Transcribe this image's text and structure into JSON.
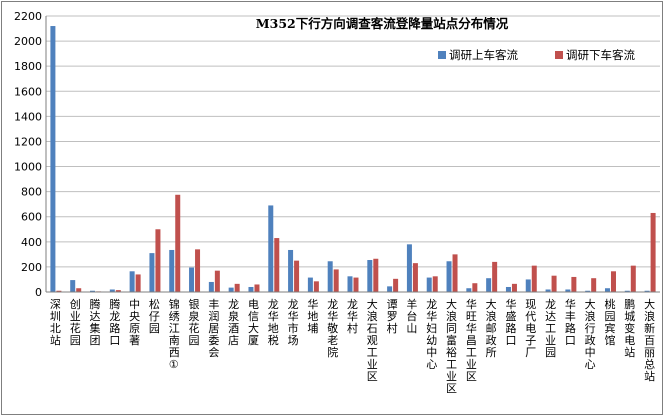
{
  "chart_data": {
    "type": "bar",
    "title": "M352下行方向调查客流登降量站点分布情况",
    "xlabel": "",
    "ylabel": "",
    "ylim": [
      0,
      2200
    ],
    "yticks": [
      0,
      200,
      400,
      600,
      800,
      1000,
      1200,
      1400,
      1600,
      1800,
      2000,
      2200
    ],
    "grid": true,
    "legend_position": "top-right",
    "categories": [
      "深圳北站",
      "创业花园",
      "腾达集团",
      "腾龙路口",
      "中央原著",
      "松仔园",
      "锦绣江南西①",
      "银泉花园",
      "丰润居委会",
      "龙泉酒店",
      "电信大厦",
      "龙华地税",
      "龙华市场",
      "华地埔",
      "龙华敬老院",
      "龙华村",
      "大浪石观工业区",
      "谭罗村",
      "羊台山",
      "龙华妇幼中心",
      "大浪同富裕工业区",
      "华旺华昌工业区",
      "大浪邮政所",
      "华盛路口",
      "现代电子厂",
      "龙达工业园",
      "华丰路口",
      "大浪行政中心",
      "桃园宾馆",
      "鹏城变电站",
      "大浪新百丽总站"
    ],
    "series": [
      {
        "name": "调研上车客流",
        "color": "#4f81bd",
        "values": [
          2120,
          95,
          10,
          20,
          165,
          310,
          335,
          195,
          80,
          35,
          40,
          690,
          335,
          115,
          245,
          125,
          255,
          45,
          380,
          115,
          245,
          30,
          110,
          40,
          100,
          20,
          20,
          10,
          30,
          10,
          10
        ]
      },
      {
        "name": "调研下车客流",
        "color": "#c0504d",
        "values": [
          10,
          30,
          5,
          15,
          140,
          500,
          775,
          340,
          170,
          65,
          60,
          430,
          250,
          85,
          180,
          115,
          265,
          105,
          230,
          125,
          300,
          70,
          240,
          65,
          210,
          130,
          120,
          110,
          165,
          210,
          630
        ]
      }
    ]
  }
}
